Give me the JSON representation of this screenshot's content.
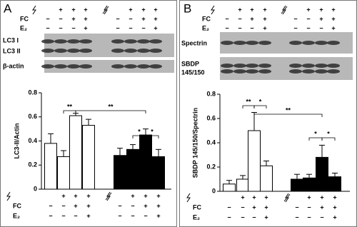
{
  "chart_data": [
    {
      "type": "bar",
      "panel_label": "A",
      "blot_labels": [
        [
          "LC3 I"
        ],
        [
          "LC3 II"
        ],
        [
          "β-actin"
        ]
      ],
      "y_label": "LC3-II/Actin",
      "values": [
        0.38,
        0.27,
        0.61,
        0.53,
        0.28,
        0.33,
        0.45,
        0.27
      ],
      "errors": [
        0.08,
        0.05,
        0.02,
        0.05,
        0.06,
        0.04,
        0.05,
        0.06
      ],
      "colors": [
        "#ffffff",
        "#ffffff",
        "#ffffff",
        "#ffffff",
        "#000000",
        "#000000",
        "#000000",
        "#000000"
      ],
      "ylim": [
        0,
        0.8
      ],
      "yticks": [
        0,
        0.2,
        0.4,
        0.6,
        0.8
      ],
      "conditions": [
        {
          "signs": [
            null,
            "+",
            "+",
            "+",
            null,
            "+",
            "+",
            "+"
          ]
        },
        {
          "label": "FC",
          "signs": [
            "−",
            "−",
            "+",
            "+",
            "−",
            "−",
            "+",
            "+"
          ]
        },
        {
          "label": "E₂",
          "signs": [
            "−",
            "−",
            "−",
            "+",
            "−",
            "−",
            "−",
            "+"
          ]
        }
      ],
      "annotations": [
        "**",
        "**",
        "*",
        "*"
      ]
    },
    {
      "type": "bar",
      "panel_label": "B",
      "blot_labels": [
        [
          "Spectrin"
        ],
        [
          "SBDP",
          "145/150"
        ]
      ],
      "y_label": "SBDP 145/150/Spectrin",
      "values": [
        0.06,
        0.1,
        0.5,
        0.21,
        0.1,
        0.11,
        0.28,
        0.12
      ],
      "errors": [
        0.03,
        0.03,
        0.15,
        0.04,
        0.04,
        0.03,
        0.1,
        0.03
      ],
      "colors": [
        "#ffffff",
        "#ffffff",
        "#ffffff",
        "#ffffff",
        "#000000",
        "#000000",
        "#000000",
        "#000000"
      ],
      "ylim": [
        0,
        0.8
      ],
      "yticks": [
        0,
        0.2,
        0.4,
        0.6,
        0.8
      ],
      "conditions": [
        {
          "signs": [
            null,
            "+",
            "+",
            "+",
            null,
            "+",
            "+",
            "+"
          ]
        },
        {
          "label": "FC",
          "signs": [
            "−",
            "−",
            "+",
            "+",
            "−",
            "−",
            "+",
            "+"
          ]
        },
        {
          "label": "E₂",
          "signs": [
            "−",
            "−",
            "−",
            "+",
            "−",
            "−",
            "−",
            "+"
          ]
        }
      ],
      "annotations": [
        "**",
        "*",
        "**",
        "*",
        "*"
      ]
    }
  ]
}
